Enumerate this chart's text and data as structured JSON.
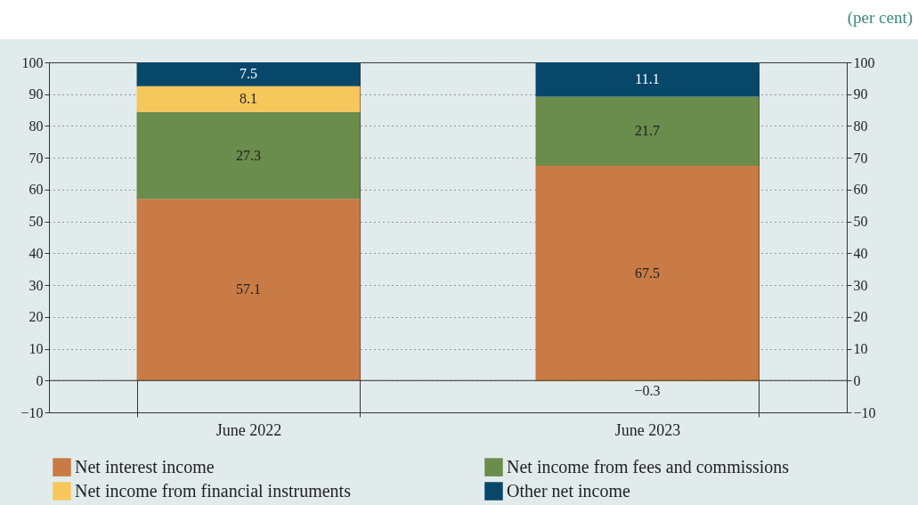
{
  "chart_data": {
    "type": "bar",
    "stacked": true,
    "categories": [
      "June 2022",
      "June 2023"
    ],
    "series": [
      {
        "name": "Net interest income",
        "color": "#c87b45",
        "values": [
          57.1,
          67.5
        ]
      },
      {
        "name": "Net income from fees and commissions",
        "color": "#6a8c4c",
        "values": [
          27.3,
          21.7
        ]
      },
      {
        "name": "Net income from financial instruments",
        "color": "#f6c75b",
        "values": [
          8.1,
          -0.3
        ]
      },
      {
        "name": "Other net income",
        "color": "#07476a",
        "values": [
          7.5,
          11.1
        ]
      }
    ],
    "ylim": [
      -10,
      100
    ],
    "yticks": [
      -10,
      0,
      10,
      20,
      30,
      40,
      50,
      60,
      70,
      80,
      90,
      100
    ],
    "y2lim": [
      -10,
      100
    ],
    "y2ticks": [
      -10,
      0,
      10,
      20,
      30,
      40,
      50,
      60,
      70,
      80,
      90,
      100
    ],
    "grid": "y",
    "legend": "bottom",
    "data_labels": true,
    "ref_lines": [
      {
        "axis": "y",
        "value": 0
      }
    ],
    "annotations": [
      "(per cent)"
    ]
  }
}
